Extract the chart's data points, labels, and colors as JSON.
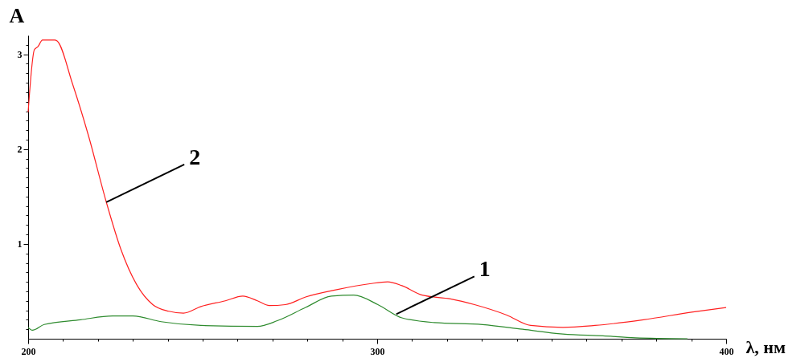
{
  "chart_data": {
    "type": "line",
    "xlabel": "λ, нм",
    "ylabel": "A",
    "xlim": [
      200,
      400
    ],
    "ylim": [
      0,
      3.2
    ],
    "xticks": [
      200,
      {
        "value": 210,
        "label": null
      },
      {
        "value": 220,
        "label": null
      },
      {
        "value": 230,
        "label": null
      },
      {
        "value": 240,
        "label": null
      },
      {
        "value": 250,
        "label": null
      },
      {
        "value": 260,
        "label": null
      },
      {
        "value": 270,
        "label": null
      },
      {
        "value": 280,
        "label": null
      },
      {
        "value": 290,
        "label": null
      },
      300,
      {
        "value": 310,
        "label": null
      },
      {
        "value": 320,
        "label": null
      },
      {
        "value": 330,
        "label": null
      },
      {
        "value": 340,
        "label": null
      },
      {
        "value": 350,
        "label": null
      },
      {
        "value": 360,
        "label": null
      },
      {
        "value": 370,
        "label": null
      },
      {
        "value": 380,
        "label": null
      },
      {
        "value": 390,
        "label": null
      },
      400
    ],
    "yticks": [
      {
        "value": 0.1,
        "label": null
      },
      {
        "value": 0.2,
        "label": null
      },
      {
        "value": 0.3,
        "label": null
      },
      {
        "value": 0.4,
        "label": null
      },
      {
        "value": 0.5,
        "label": null
      },
      {
        "value": 0.6,
        "label": null
      },
      {
        "value": 0.7,
        "label": null
      },
      {
        "value": 0.8,
        "label": null
      },
      {
        "value": 0.9,
        "label": null
      },
      1,
      {
        "value": 1.1,
        "label": null
      },
      {
        "value": 1.2,
        "label": null
      },
      {
        "value": 1.3,
        "label": null
      },
      {
        "value": 1.4,
        "label": null
      },
      {
        "value": 1.5,
        "label": null
      },
      {
        "value": 1.6,
        "label": null
      },
      {
        "value": 1.7,
        "label": null
      },
      {
        "value": 1.8,
        "label": null
      },
      {
        "value": 1.9,
        "label": null
      },
      2,
      {
        "value": 2.1,
        "label": null
      },
      {
        "value": 2.2,
        "label": null
      },
      {
        "value": 2.3,
        "label": null
      },
      {
        "value": 2.4,
        "label": null
      },
      {
        "value": 2.5,
        "label": null
      },
      {
        "value": 2.6,
        "label": null
      },
      {
        "value": 2.7,
        "label": null
      },
      {
        "value": 2.8,
        "label": null
      },
      {
        "value": 2.9,
        "label": null
      },
      3,
      {
        "value": 3.1,
        "label": null
      }
    ],
    "grid": false,
    "legend": false,
    "marker": "none",
    "line_style": "solid",
    "series": [
      {
        "color": "#2e8b2e",
        "x": [
          200,
          201.2,
          204.6,
          215,
          224.2,
          230,
          238.1,
          249.5,
          265.7,
          271.4,
          279.5,
          286.9,
          293.3,
          300.2,
          307.1,
          316.4,
          330.2,
          341.7,
          353.2,
          364.7,
          374,
          388.9
        ],
        "values": [
          0.12,
          0.09,
          0.15,
          0.2,
          0.24,
          0.24,
          0.18,
          0.14,
          0.13,
          0.19,
          0.33,
          0.45,
          0.46,
          0.36,
          0.22,
          0.17,
          0.15,
          0.1,
          0.05,
          0.03,
          0.01,
          0
        ]
      },
      {
        "color": "#ff2020",
        "x": [
          200,
          201.8,
          202.8,
          204.1,
          207.6,
          208.3,
          212.7,
          217.3,
          222.4,
          226.5,
          231.1,
          235.7,
          240.3,
          244.5,
          249.5,
          256.5,
          261.5,
          265.7,
          269.1,
          273.7,
          279.5,
          288.7,
          297.9,
          303,
          307.1,
          312.9,
          321,
          327.9,
          337.1,
          344,
          353.2,
          362.4,
          376.3,
          390.1,
          400
        ],
        "values": [
          2.39,
          3.05,
          3.08,
          3.15,
          3.15,
          3.14,
          2.69,
          2.14,
          1.44,
          0.95,
          0.57,
          0.36,
          0.29,
          0.27,
          0.34,
          0.4,
          0.45,
          0.4,
          0.35,
          0.36,
          0.44,
          0.52,
          0.58,
          0.6,
          0.56,
          0.46,
          0.42,
          0.36,
          0.25,
          0.14,
          0.12,
          0.14,
          0.2,
          0.28,
          0.33
        ]
      }
    ],
    "annotations": [
      {
        "text": "2",
        "x": 222.4,
        "y": 1.44
      },
      {
        "text": "1",
        "x": 305.5,
        "y": 0.26
      }
    ]
  }
}
